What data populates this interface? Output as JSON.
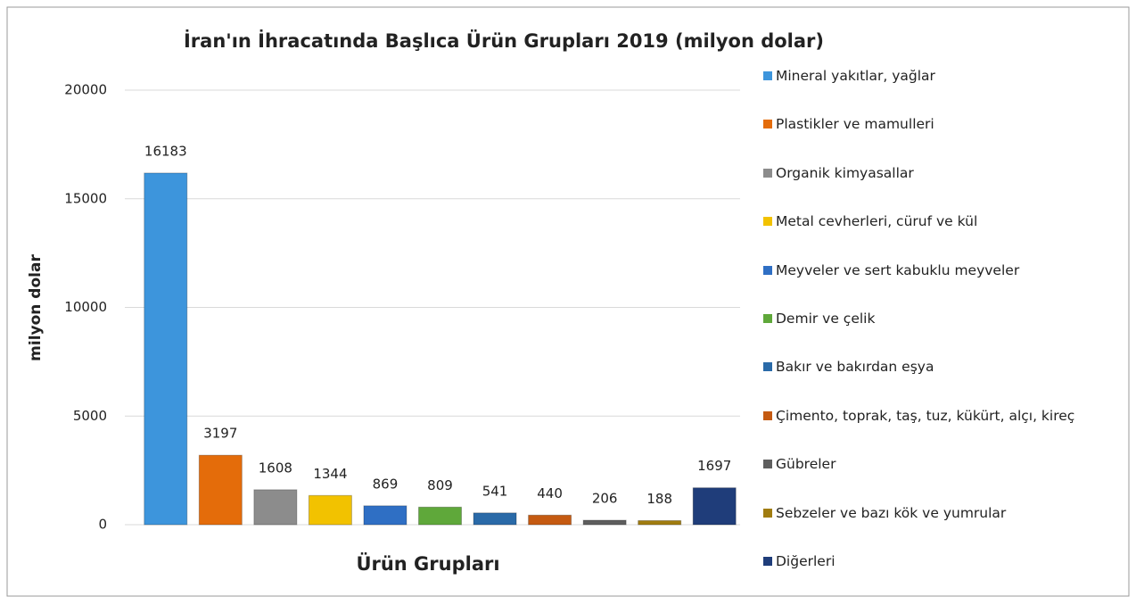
{
  "chart_data": {
    "type": "bar",
    "title": "İran'ın İhracatında Başlıca Ürün Grupları 2019 (milyon dolar)",
    "x_label": "Ürün Grupları",
    "y_label": "milyon dolar",
    "categories": [
      "Mineral yakıtlar, yağlar",
      "Plastikler ve mamulleri",
      "Organik kimyasallar",
      "Metal cevherleri, cüruf ve kül",
      "Meyveler ve sert kabuklu meyveler",
      "Demir ve çelik",
      "Bakır ve bakırdan eşya",
      "Çimento, toprak, taş, tuz, kükürt, alçı, kireç",
      "Gübreler",
      "Sebzeler ve bazı kök ve yumrular",
      "Diğerleri"
    ],
    "values": [
      16183,
      3197,
      1608,
      1344,
      869,
      809,
      541,
      440,
      206,
      188,
      1697
    ],
    "colors": [
      "#3d95dc",
      "#e46c0a",
      "#8c8c8c",
      "#f2c200",
      "#2f6fc4",
      "#5fa83a",
      "#2a6aa8",
      "#c55a11",
      "#5e5e5e",
      "#a07c10",
      "#1f3d7a"
    ],
    "ylim": [
      0,
      20000
    ],
    "yticks": [
      0,
      5000,
      10000,
      15000,
      20000
    ],
    "grid": true,
    "legend": "right"
  }
}
